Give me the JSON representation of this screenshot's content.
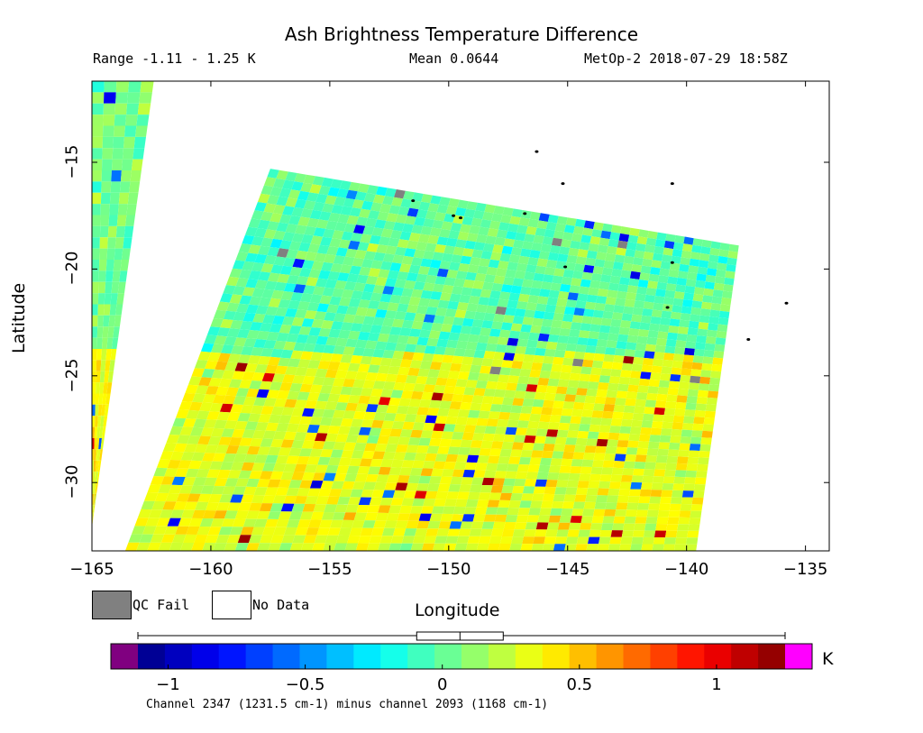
{
  "title": "Ash Brightness Temperature Difference",
  "range_text": "Range -1.11 - 1.25 K",
  "mean_text": "Mean 0.0644",
  "satellite_text": "MetOp-2 2018-07-29 18:58Z",
  "legend": {
    "qc_fail_label": "QC Fail",
    "no_data_label": "No Data",
    "qc_fail_color": "#808080",
    "no_data_color": "#ffffff"
  },
  "colorbar": {
    "unit": "K",
    "min": -1.11,
    "max": 1.25,
    "mean": 0.0644,
    "ticks": [
      -1,
      -0.5,
      0,
      0.5,
      1
    ],
    "tick_labels": [
      "−1",
      "−0.5",
      "0",
      "0.5",
      "1"
    ],
    "under_color": "#800080",
    "over_color": "#ff00ff",
    "colormap": "jet"
  },
  "footnote": "Channel 2347 (1231.5 cm-1) minus channel 2093 (1168 cm-1)",
  "chart_data": {
    "type": "heatmap",
    "title": "Ash Brightness Temperature Difference",
    "xlabel": "Longitude",
    "ylabel": "Latitude",
    "xlim": [
      -165,
      -134
    ],
    "ylim": [
      -33.2,
      -11.2
    ],
    "xticks": [
      -165,
      -160,
      -155,
      -150,
      -145,
      -140,
      -135
    ],
    "xtick_labels": [
      "−165",
      "−160",
      "−155",
      "−150",
      "−145",
      "−140",
      "−135"
    ],
    "yticks": [
      -15,
      -20,
      -25,
      -30
    ],
    "ytick_labels": [
      "−15",
      "−20",
      "−25",
      "−30"
    ],
    "value_range": [
      -1.11,
      1.25
    ],
    "mean": 0.0644,
    "unit": "K",
    "swath_main_corners": [
      [
        -157.5,
        -15.3
      ],
      [
        -137.8,
        -18.9
      ],
      [
        -139.6,
        -33.2
      ],
      [
        -163.6,
        -33.2
      ]
    ],
    "swath_left_corners": [
      [
        -165,
        -11.2
      ],
      [
        -162.4,
        -11.2
      ],
      [
        -165,
        -32.1
      ]
    ],
    "islands": [
      [
        -146.3,
        -14.5
      ],
      [
        -151.5,
        -16.8
      ],
      [
        -149.8,
        -17.5
      ],
      [
        -149.5,
        -17.6
      ],
      [
        -146.8,
        -17.4
      ],
      [
        -145.2,
        -16.0
      ],
      [
        -140.6,
        -16.0
      ],
      [
        -145.1,
        -19.9
      ],
      [
        -140.6,
        -19.7
      ],
      [
        -140.8,
        -21.8
      ],
      [
        -135.8,
        -21.6
      ],
      [
        -137.4,
        -23.3
      ]
    ]
  }
}
